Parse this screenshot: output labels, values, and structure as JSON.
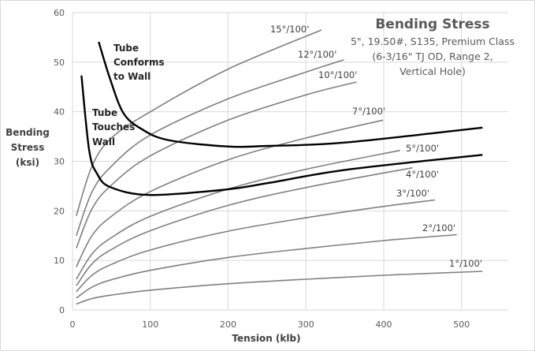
{
  "chart_data": {
    "type": "line",
    "title": "Bending Stress",
    "subtitle": [
      "5\", 19.50#, S135, Premium Class",
      "(6-3/16\" TJ OD, Range 2,",
      "Vertical Hole)"
    ],
    "xlabel": "Tension (klb)",
    "ylabel": [
      "Bending",
      "Stress",
      "(ksi)"
    ],
    "xlim": [
      0,
      560
    ],
    "ylim": [
      0,
      60
    ],
    "xticks": [
      0,
      100,
      200,
      300,
      400,
      500
    ],
    "yticks": [
      0,
      10,
      20,
      30,
      40,
      50,
      60
    ],
    "grid": true,
    "colors": {
      "series": "#7f7f7f",
      "limit": "#000000",
      "grid": "#d9d9d9"
    },
    "series": [
      {
        "name": "15°/100'",
        "x": [
          5,
          25,
          50,
          100,
          200,
          320
        ],
        "y": [
          19,
          29,
          34.7,
          40,
          48.6,
          56.5
        ]
      },
      {
        "name": "12°/100'",
        "x": [
          5,
          25,
          50,
          100,
          200,
          300,
          349
        ],
        "y": [
          15,
          23.8,
          29,
          35.3,
          42.6,
          48,
          50.5
        ]
      },
      {
        "name": "10°/100'",
        "x": [
          5,
          25,
          50,
          100,
          200,
          300,
          365
        ],
        "y": [
          12.5,
          20.4,
          25.2,
          31.1,
          38.3,
          43.4,
          46
        ]
      },
      {
        "name": "7°/100'",
        "x": [
          5,
          25,
          50,
          100,
          200,
          300,
          399
        ],
        "y": [
          8.7,
          15,
          18.9,
          23.9,
          30.3,
          34.7,
          38.3
        ]
      },
      {
        "name": "5°/100'",
        "x": [
          5,
          25,
          50,
          100,
          200,
          300,
          421
        ],
        "y": [
          6.2,
          11.3,
          14.6,
          18.9,
          24.4,
          28.4,
          32.2
        ]
      },
      {
        "name": "4°/100'",
        "x": [
          5,
          25,
          50,
          100,
          200,
          300,
          437
        ],
        "y": [
          4.9,
          9.3,
          12.2,
          16,
          21.1,
          24.7,
          28.7
        ]
      },
      {
        "name": "3°/100'",
        "x": [
          5,
          25,
          50,
          100,
          200,
          300,
          400,
          466
        ],
        "y": [
          3.7,
          7,
          9.2,
          12.1,
          15.9,
          18.6,
          20.9,
          22.2
        ]
      },
      {
        "name": "2°/100'",
        "x": [
          5,
          25,
          50,
          100,
          200,
          300,
          400,
          494
        ],
        "y": [
          2.4,
          4.6,
          6.1,
          8,
          10.6,
          12.4,
          14,
          15.2
        ]
      },
      {
        "name": "1°/100'",
        "x": [
          5,
          25,
          50,
          100,
          200,
          300,
          400,
          527
        ],
        "y": [
          1.2,
          2.3,
          3,
          4,
          5.3,
          6.2,
          7,
          7.8
        ]
      }
    ],
    "limit_curves": [
      {
        "name": [
          "Tube",
          "Conforms",
          "to Wall"
        ],
        "x": [
          33.7,
          48.6,
          65.6,
          89,
          122.5,
          197,
          251,
          352,
          527
        ],
        "y": [
          54.1,
          46.5,
          39.7,
          36.5,
          34.3,
          33,
          33.1,
          33.8,
          36.8
        ]
      },
      {
        "name": [
          "Tube",
          "Touches",
          "Wall"
        ],
        "x": [
          11.5,
          21.5,
          31.6,
          48.6,
          99,
          197,
          251,
          352,
          527
        ],
        "y": [
          47.3,
          32.2,
          27.5,
          24.8,
          23.2,
          24.3,
          25.6,
          28.3,
          31.3
        ]
      }
    ]
  }
}
